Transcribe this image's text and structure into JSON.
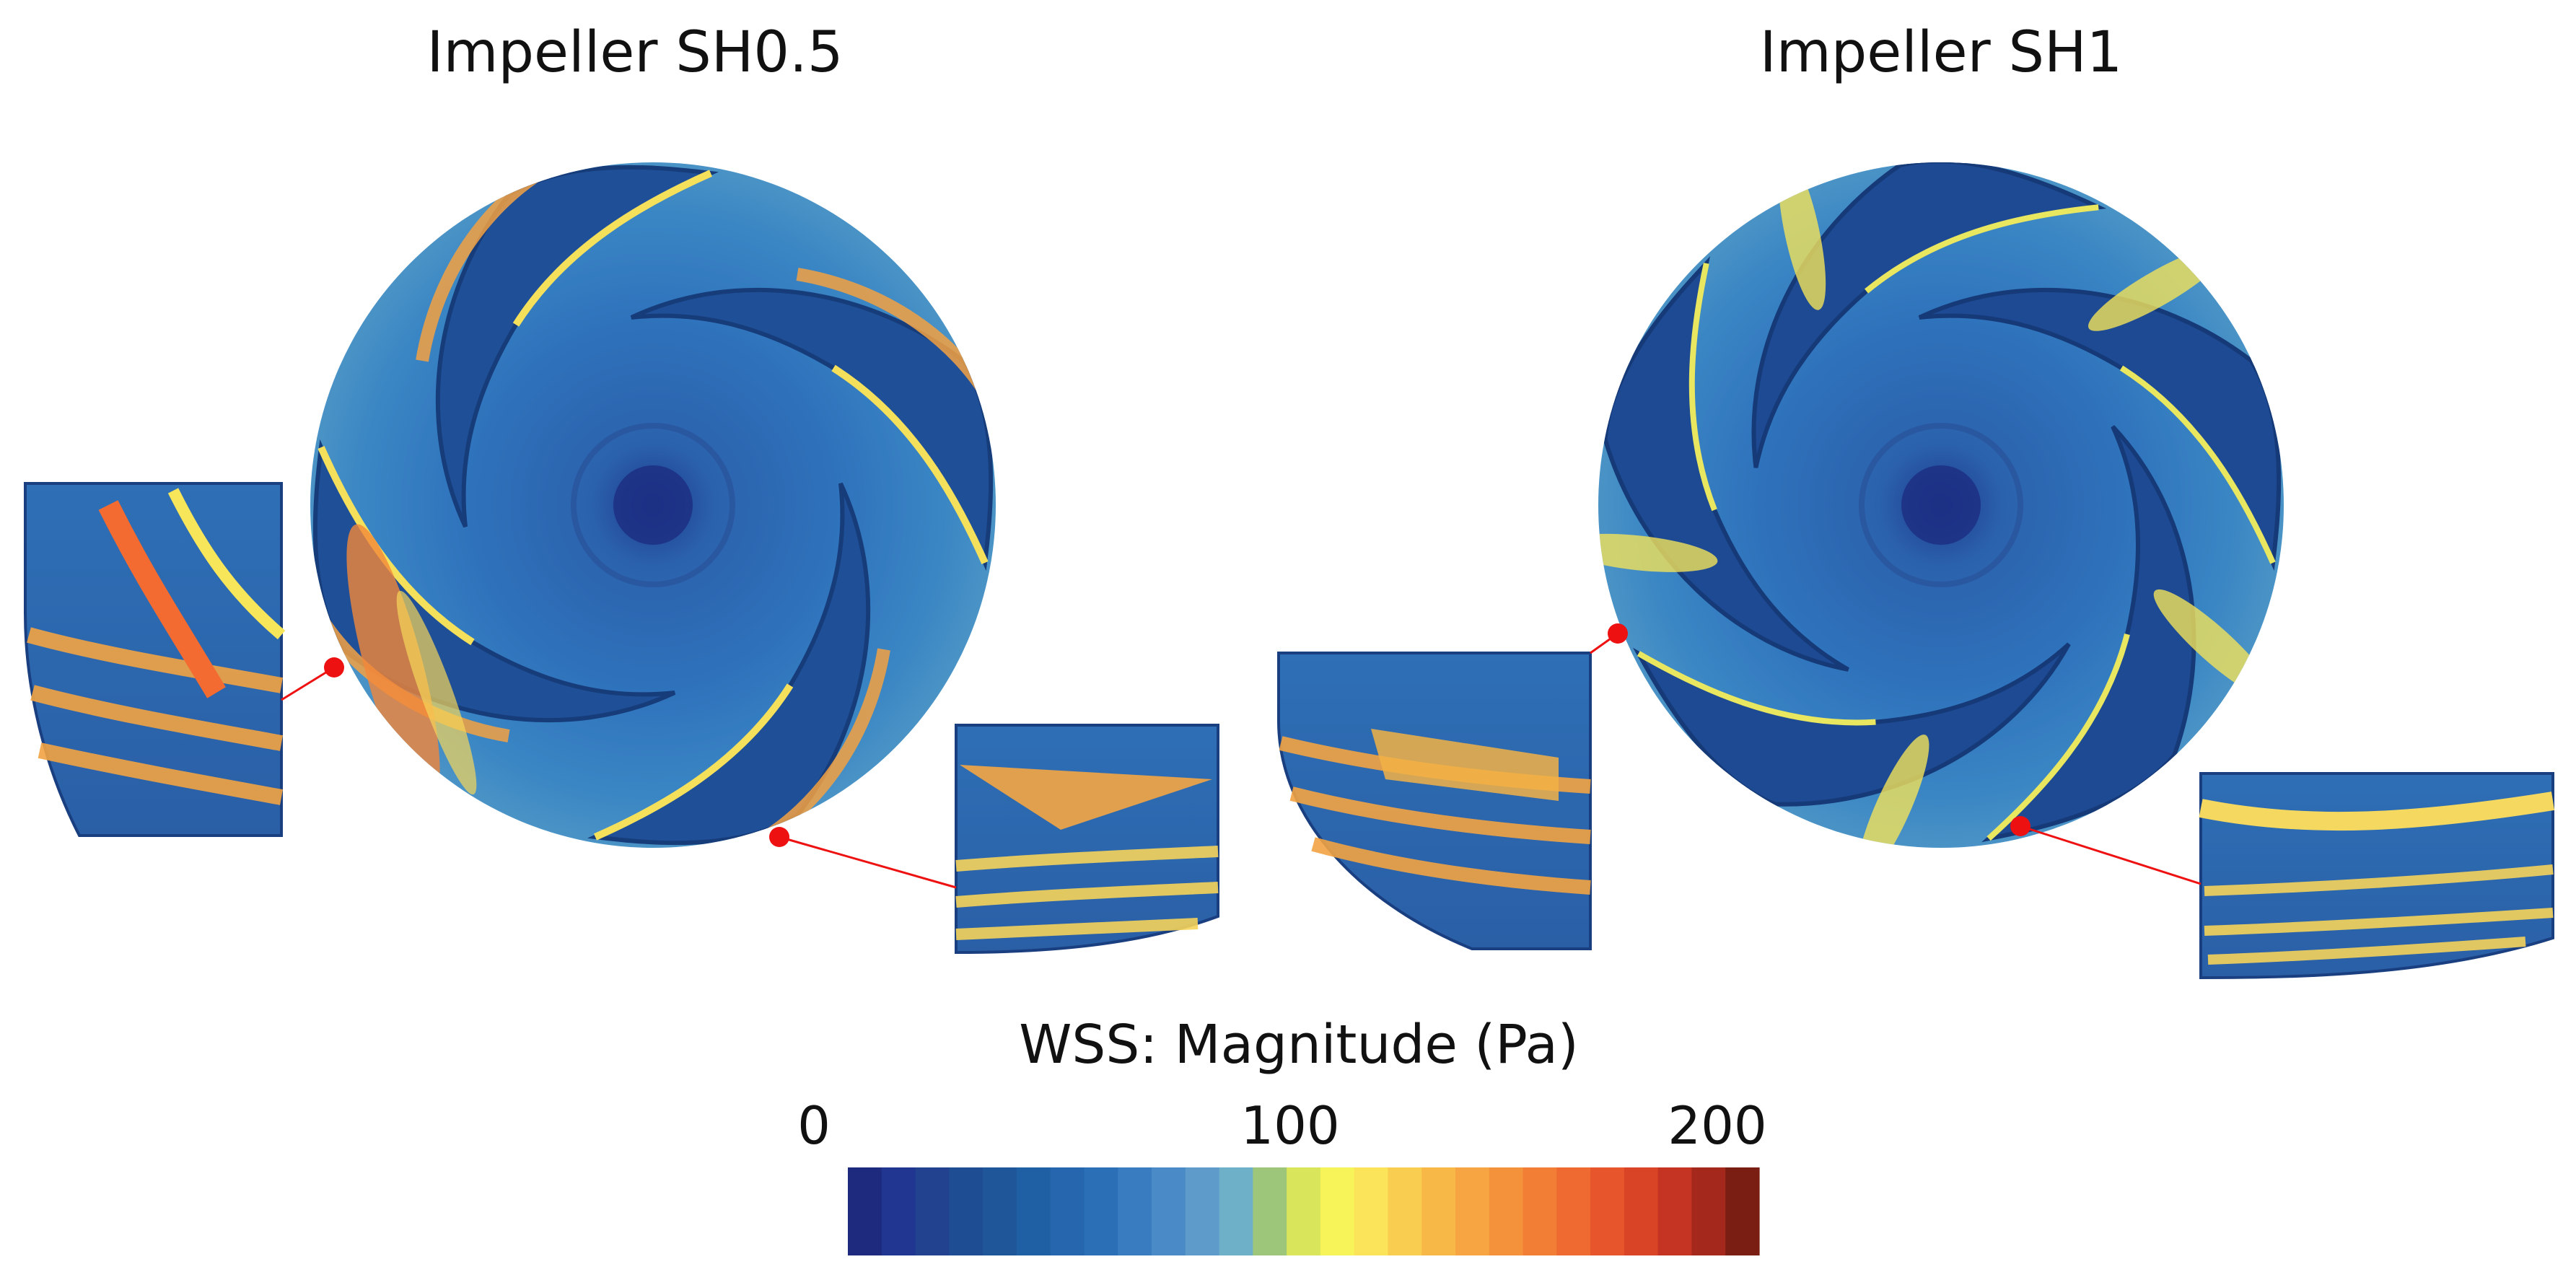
{
  "panels": [
    {
      "title": "Impeller SH0.5"
    },
    {
      "title": "Impeller SH1"
    }
  ],
  "colorbar": {
    "title": "WSS: Magnitude (Pa)",
    "min_label": "0",
    "mid_label": "100",
    "max_label": "200",
    "min": 0,
    "max": 200,
    "colors": [
      "#1e2a7e",
      "#203691",
      "#22418f",
      "#1f4d94",
      "#1e5699",
      "#1f5fa4",
      "#2566ae",
      "#2b6fb7",
      "#3a7cc0",
      "#4a8ac6",
      "#5e9bcb",
      "#6fb0c9",
      "#9ec67a",
      "#d9e65c",
      "#f7f45a",
      "#fbe35a",
      "#f8cd50",
      "#f7b848",
      "#f6a542",
      "#f4923c",
      "#f27e36",
      "#ee6a31",
      "#e6552c",
      "#d94427",
      "#c53422",
      "#a5281c",
      "#7a1d12"
    ]
  },
  "colors": {
    "callout": "#ee1111",
    "base_blue": "#2e6fb5",
    "dark_blue": "#1c3a78",
    "hot": "#f5a542"
  }
}
